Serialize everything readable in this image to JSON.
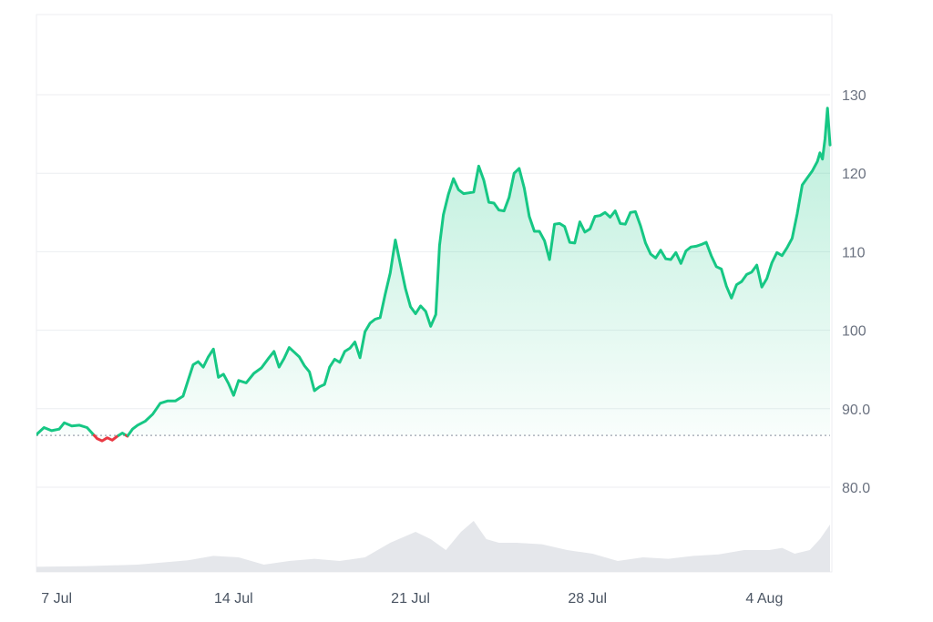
{
  "chart_data": {
    "type": "area",
    "title": "",
    "xlabel": "",
    "ylabel": "",
    "x_tick_labels": [
      "7 Jul",
      "14 Jul",
      "21 Jul",
      "28 Jul",
      "4 Aug"
    ],
    "y_ticks": [
      80,
      90,
      100,
      110,
      120,
      130
    ],
    "y_tick_labels": [
      "80.0",
      "90.0",
      "100",
      "110",
      "120",
      "130"
    ],
    "ylim": [
      70,
      140
    ],
    "x_range_days": [
      0,
      31.4
    ],
    "baseline": 86.6,
    "grid": true,
    "legend": "none",
    "colors": {
      "up": "#16c784",
      "down": "#ea3943",
      "volume": "#e5e7eb",
      "grid": "#eceef1",
      "baseline": "#9ca3af"
    },
    "series": [
      {
        "values": [
          [
            0.0,
            86.7
          ],
          [
            0.3,
            87.6
          ],
          [
            0.6,
            87.2
          ],
          [
            0.9,
            87.4
          ],
          [
            1.1,
            88.2
          ],
          [
            1.4,
            87.8
          ],
          [
            1.7,
            87.9
          ],
          [
            2.0,
            87.6
          ],
          [
            2.2,
            86.9
          ],
          [
            2.4,
            86.2
          ],
          [
            2.6,
            85.9
          ],
          [
            2.8,
            86.3
          ],
          [
            3.0,
            86.0
          ],
          [
            3.2,
            86.5
          ],
          [
            3.4,
            86.9
          ],
          [
            3.6,
            86.5
          ],
          [
            3.8,
            87.4
          ],
          [
            4.0,
            87.9
          ],
          [
            4.3,
            88.4
          ],
          [
            4.6,
            89.3
          ],
          [
            4.9,
            90.7
          ],
          [
            5.2,
            91.0
          ],
          [
            5.5,
            91.0
          ],
          [
            5.8,
            91.6
          ],
          [
            6.0,
            93.6
          ],
          [
            6.2,
            95.6
          ],
          [
            6.4,
            96.0
          ],
          [
            6.6,
            95.3
          ],
          [
            6.8,
            96.6
          ],
          [
            7.0,
            97.6
          ],
          [
            7.2,
            94.0
          ],
          [
            7.4,
            94.4
          ],
          [
            7.6,
            93.2
          ],
          [
            7.8,
            91.7
          ],
          [
            8.0,
            93.6
          ],
          [
            8.3,
            93.3
          ],
          [
            8.6,
            94.5
          ],
          [
            8.9,
            95.2
          ],
          [
            9.2,
            96.5
          ],
          [
            9.4,
            97.3
          ],
          [
            9.6,
            95.3
          ],
          [
            9.8,
            96.4
          ],
          [
            10.0,
            97.8
          ],
          [
            10.2,
            97.2
          ],
          [
            10.4,
            96.6
          ],
          [
            10.6,
            95.5
          ],
          [
            10.8,
            94.7
          ],
          [
            11.0,
            92.3
          ],
          [
            11.2,
            92.8
          ],
          [
            11.4,
            93.1
          ],
          [
            11.6,
            95.3
          ],
          [
            11.8,
            96.3
          ],
          [
            12.0,
            95.9
          ],
          [
            12.2,
            97.3
          ],
          [
            12.4,
            97.7
          ],
          [
            12.6,
            98.5
          ],
          [
            12.8,
            96.5
          ],
          [
            13.0,
            99.8
          ],
          [
            13.2,
            100.9
          ],
          [
            13.4,
            101.4
          ],
          [
            13.6,
            101.6
          ],
          [
            13.8,
            104.6
          ],
          [
            14.0,
            107.3
          ],
          [
            14.2,
            111.5
          ],
          [
            14.4,
            108.4
          ],
          [
            14.6,
            105.3
          ],
          [
            14.8,
            103.0
          ],
          [
            15.0,
            102.1
          ],
          [
            15.2,
            103.1
          ],
          [
            15.4,
            102.4
          ],
          [
            15.6,
            100.5
          ],
          [
            15.8,
            102.0
          ],
          [
            15.95,
            110.8
          ],
          [
            16.1,
            114.7
          ],
          [
            16.3,
            117.3
          ],
          [
            16.5,
            119.3
          ],
          [
            16.7,
            117.9
          ],
          [
            16.9,
            117.4
          ],
          [
            17.1,
            117.5
          ],
          [
            17.3,
            117.6
          ],
          [
            17.5,
            120.9
          ],
          [
            17.7,
            119.1
          ],
          [
            17.9,
            116.3
          ],
          [
            18.1,
            116.2
          ],
          [
            18.3,
            115.3
          ],
          [
            18.5,
            115.2
          ],
          [
            18.7,
            116.9
          ],
          [
            18.9,
            120.0
          ],
          [
            19.1,
            120.6
          ],
          [
            19.3,
            118.1
          ],
          [
            19.5,
            114.5
          ],
          [
            19.7,
            112.6
          ],
          [
            19.9,
            112.6
          ],
          [
            20.1,
            111.4
          ],
          [
            20.3,
            109.0
          ],
          [
            20.5,
            113.5
          ],
          [
            20.7,
            113.6
          ],
          [
            20.9,
            113.2
          ],
          [
            21.1,
            111.2
          ],
          [
            21.3,
            111.1
          ],
          [
            21.5,
            113.8
          ],
          [
            21.7,
            112.5
          ],
          [
            21.9,
            112.9
          ],
          [
            22.1,
            114.5
          ],
          [
            22.3,
            114.6
          ],
          [
            22.5,
            115.0
          ],
          [
            22.7,
            114.4
          ],
          [
            22.9,
            115.2
          ],
          [
            23.1,
            113.6
          ],
          [
            23.3,
            113.5
          ],
          [
            23.5,
            115.0
          ],
          [
            23.7,
            115.1
          ],
          [
            23.9,
            113.3
          ],
          [
            24.1,
            111.1
          ],
          [
            24.3,
            109.7
          ],
          [
            24.5,
            109.2
          ],
          [
            24.7,
            110.2
          ],
          [
            24.9,
            109.1
          ],
          [
            25.1,
            109.0
          ],
          [
            25.3,
            109.9
          ],
          [
            25.5,
            108.5
          ],
          [
            25.7,
            110.1
          ],
          [
            25.9,
            110.6
          ],
          [
            26.1,
            110.7
          ],
          [
            26.3,
            110.9
          ],
          [
            26.5,
            111.2
          ],
          [
            26.7,
            109.5
          ],
          [
            26.9,
            108.1
          ],
          [
            27.1,
            107.8
          ],
          [
            27.3,
            105.6
          ],
          [
            27.5,
            104.1
          ],
          [
            27.7,
            105.8
          ],
          [
            27.9,
            106.2
          ],
          [
            28.1,
            107.1
          ],
          [
            28.3,
            107.4
          ],
          [
            28.5,
            108.3
          ],
          [
            28.7,
            105.5
          ],
          [
            28.9,
            106.6
          ],
          [
            29.1,
            108.6
          ],
          [
            29.3,
            109.9
          ],
          [
            29.5,
            109.5
          ],
          [
            29.7,
            110.5
          ],
          [
            29.9,
            111.7
          ],
          [
            30.1,
            114.8
          ],
          [
            30.3,
            118.5
          ],
          [
            30.5,
            119.4
          ],
          [
            30.7,
            120.3
          ],
          [
            30.9,
            121.5
          ],
          [
            31.0,
            122.6
          ],
          [
            31.1,
            121.8
          ],
          [
            31.2,
            124.4
          ],
          [
            31.3,
            128.3
          ],
          [
            31.4,
            123.6
          ]
        ]
      }
    ],
    "volume": [
      [
        0.0,
        0.07
      ],
      [
        2.0,
        0.08
      ],
      [
        4.0,
        0.1
      ],
      [
        6.0,
        0.16
      ],
      [
        7.0,
        0.22
      ],
      [
        8.0,
        0.2
      ],
      [
        9.0,
        0.1
      ],
      [
        10.0,
        0.15
      ],
      [
        11.0,
        0.18
      ],
      [
        12.0,
        0.15
      ],
      [
        13.0,
        0.2
      ],
      [
        14.0,
        0.4
      ],
      [
        15.0,
        0.55
      ],
      [
        15.6,
        0.45
      ],
      [
        16.2,
        0.3
      ],
      [
        16.8,
        0.55
      ],
      [
        17.3,
        0.7
      ],
      [
        17.8,
        0.45
      ],
      [
        18.3,
        0.4
      ],
      [
        19.0,
        0.4
      ],
      [
        20.0,
        0.38
      ],
      [
        21.0,
        0.3
      ],
      [
        22.0,
        0.25
      ],
      [
        23.0,
        0.15
      ],
      [
        24.0,
        0.2
      ],
      [
        25.0,
        0.18
      ],
      [
        26.0,
        0.22
      ],
      [
        27.0,
        0.24
      ],
      [
        28.0,
        0.3
      ],
      [
        29.0,
        0.3
      ],
      [
        29.5,
        0.33
      ],
      [
        30.0,
        0.25
      ],
      [
        30.6,
        0.3
      ],
      [
        31.0,
        0.45
      ],
      [
        31.4,
        0.65
      ]
    ]
  }
}
